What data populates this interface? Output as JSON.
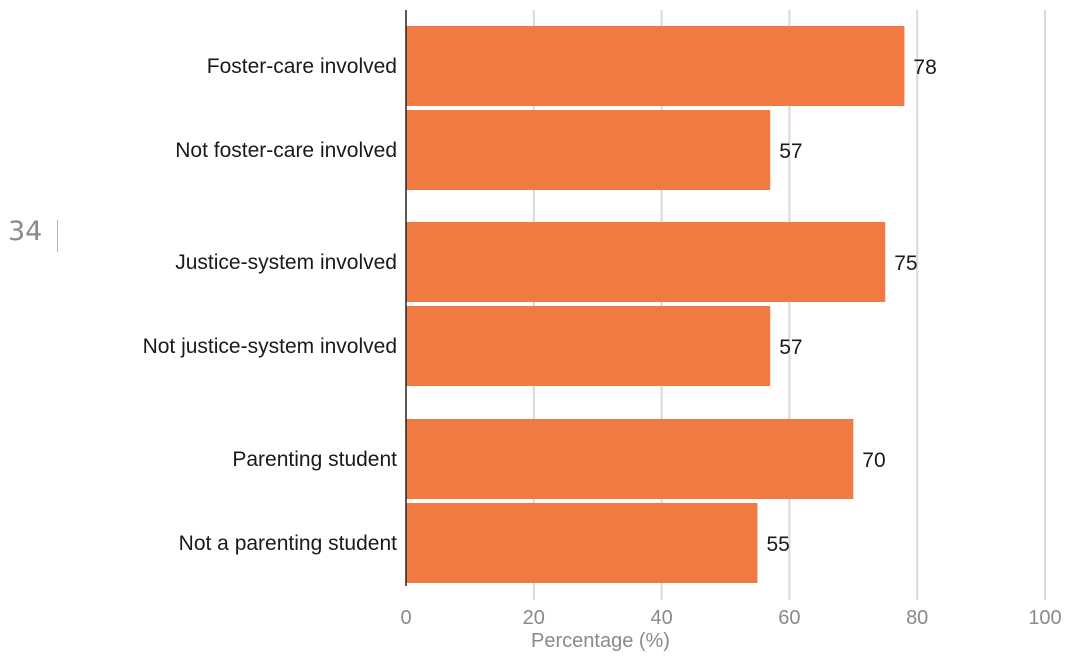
{
  "page_number": "34",
  "chart_data": {
    "type": "bar",
    "orientation": "horizontal",
    "categories": [
      "Foster-care involved",
      "Not foster-care involved",
      "Justice-system involved",
      "Not justice-system involved",
      "Parenting student",
      "Not a parenting student"
    ],
    "values": [
      78,
      57,
      75,
      57,
      70,
      55
    ],
    "data_labels": [
      "78",
      "57",
      "75",
      "57",
      "70",
      "55"
    ],
    "xlabel": "Percentage (%)",
    "ylabel": "",
    "xlim": [
      0,
      100
    ],
    "x_ticks": [
      "0",
      "20",
      "40",
      "60",
      "80",
      "100"
    ],
    "grid": true,
    "bar_color": "#f07a42",
    "grid_color": "#d9d9d9"
  }
}
